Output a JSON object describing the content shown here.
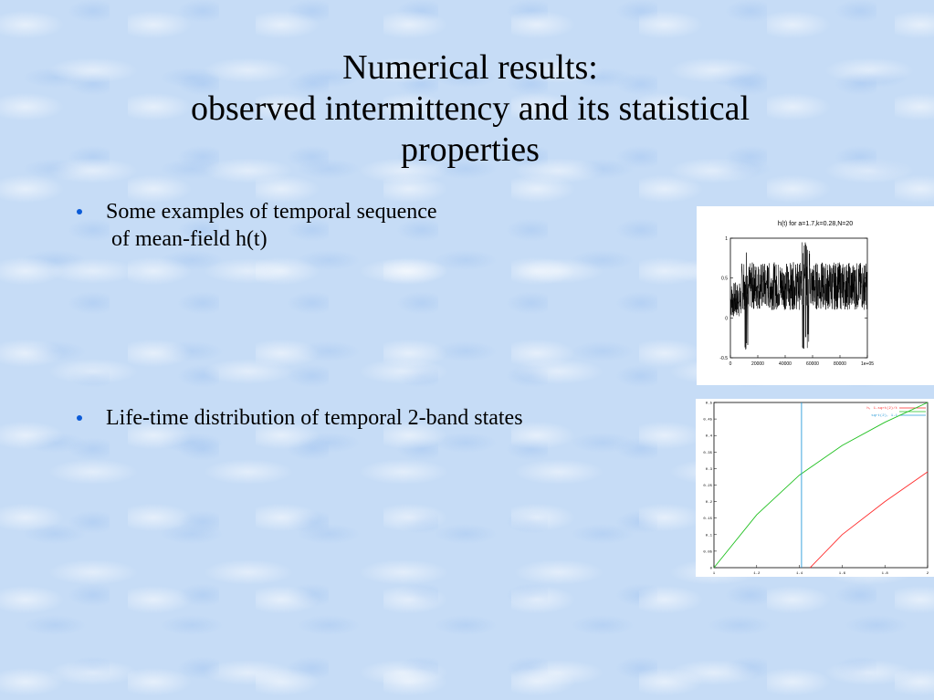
{
  "slide": {
    "title_lines": [
      "Numerical results:",
      "observed intermittency and its statistical",
      "properties"
    ],
    "bullets": [
      {
        "line1": "Some examples of temporal sequence",
        "line2": "of mean-field h(t)"
      },
      {
        "line1": "Life-time distribution of temporal 2-band states"
      }
    ]
  },
  "colors": {
    "bullet": "#0b5bd7",
    "background": "#c6dcf6",
    "curve_red": "#ff2a2a",
    "curve_green": "#20c020",
    "curve_blue": "#2a9bd8"
  },
  "chart_data": [
    {
      "type": "line",
      "title": "h(t) for a=1.7,k=0.28,N=20",
      "x_ticks": [
        "0",
        "20000",
        "40000",
        "60000",
        "80000",
        "1e+05"
      ],
      "y_ticks": [
        "-0.5",
        "0",
        "0.5",
        "1"
      ],
      "xlim": [
        0,
        100000
      ],
      "ylim": [
        -0.5,
        1
      ],
      "series": [
        {
          "values_note_band": [
            0.1,
            0.7
          ],
          "burst_regions": [
            [
              10000,
              14000
            ],
            [
              52000,
              58000
            ]
          ]
        }
      ]
    },
    {
      "type": "line",
      "x_ticks": [
        "1",
        "1.2",
        "1.4",
        "1.6",
        "1.8",
        "2"
      ],
      "y_ticks": [
        "0",
        "0.05",
        "0.1",
        "0.15",
        "0.2",
        "0.25",
        "0.3",
        "0.35",
        "0.4",
        "0.45",
        "0.5"
      ],
      "xlim": [
        1,
        2
      ],
      "ylim": [
        0,
        0.5
      ],
      "legend": [
        "h, 1-sqrt(2)/t",
        "",
        "sqrt(2), 1-1"
      ],
      "series": [
        {
          "color": "red",
          "x": [
            1.45,
            1.6,
            1.8,
            2.0
          ],
          "y": [
            0.0,
            0.1,
            0.2,
            0.29
          ]
        },
        {
          "color": "green",
          "x": [
            1.0,
            1.2,
            1.4,
            1.6,
            1.8,
            2.0
          ],
          "y": [
            0.0,
            0.16,
            0.28,
            0.37,
            0.44,
            0.5
          ]
        },
        {
          "color": "blue",
          "x": [
            1.41,
            1.41
          ],
          "y": [
            0,
            0.5
          ]
        }
      ]
    }
  ]
}
